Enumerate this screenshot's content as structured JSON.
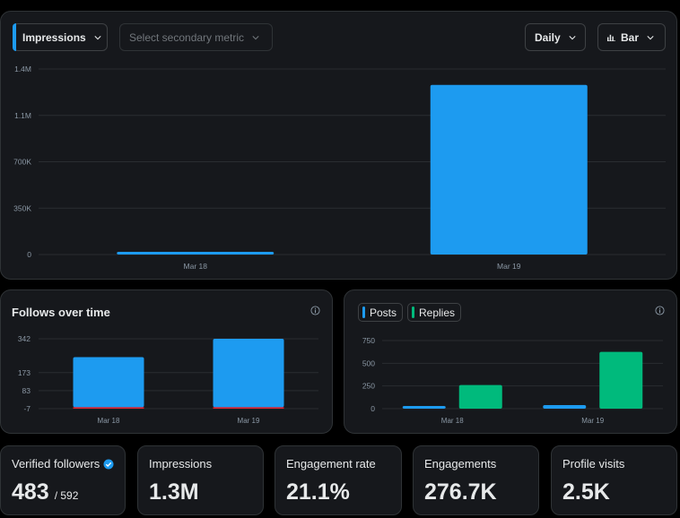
{
  "controls": {
    "primary_metric": "Impressions",
    "secondary_metric_placeholder": "Select secondary metric",
    "interval": "Daily",
    "chart_type": "Bar"
  },
  "colors": {
    "primary": "#1d9bf0",
    "secondary": "#00ba7c",
    "negative": "#f4212e"
  },
  "follows_card": {
    "title": "Follows over time"
  },
  "posts_card": {
    "legend": [
      "Posts",
      "Replies"
    ]
  },
  "stats": [
    {
      "label": "Verified followers",
      "value": "483",
      "sub": "/ 592",
      "verified": true
    },
    {
      "label": "Impressions",
      "value": "1.3M"
    },
    {
      "label": "Engagement rate",
      "value": "21.1%"
    },
    {
      "label": "Engagements",
      "value": "276.7K"
    },
    {
      "label": "Profile visits",
      "value": "2.5K"
    }
  ],
  "chart_data": [
    {
      "id": "main",
      "type": "bar",
      "categories": [
        "Mar 18",
        "Mar 19"
      ],
      "series": [
        {
          "name": "Impressions",
          "values": [
            8000,
            1280000
          ]
        }
      ],
      "yticks": [
        0,
        350000,
        700000,
        1050000,
        1400000
      ],
      "ytick_labels": [
        "0",
        "350K",
        "700K",
        "1.1M",
        "1.4M"
      ],
      "ylim": [
        0,
        1400000
      ]
    },
    {
      "id": "follows",
      "type": "bar",
      "title": "Follows over time",
      "categories": [
        "Mar 18",
        "Mar 19"
      ],
      "series": [
        {
          "name": "Follows",
          "values": [
            250,
            342
          ]
        },
        {
          "name": "Unfollows",
          "values": [
            -3,
            -5
          ]
        }
      ],
      "yticks": [
        -7,
        83,
        173,
        342
      ],
      "ytick_labels": [
        "-7",
        "83",
        "173",
        "342"
      ],
      "ylim": [
        -7,
        342
      ]
    },
    {
      "id": "posts",
      "type": "bar",
      "categories": [
        "Mar 18",
        "Mar 19"
      ],
      "series": [
        {
          "name": "Posts",
          "values": [
            30,
            40
          ]
        },
        {
          "name": "Replies",
          "values": [
            260,
            625
          ]
        }
      ],
      "yticks": [
        0,
        250,
        500,
        750
      ],
      "ytick_labels": [
        "0",
        "250",
        "500",
        "750"
      ],
      "ylim": [
        0,
        750
      ]
    }
  ]
}
